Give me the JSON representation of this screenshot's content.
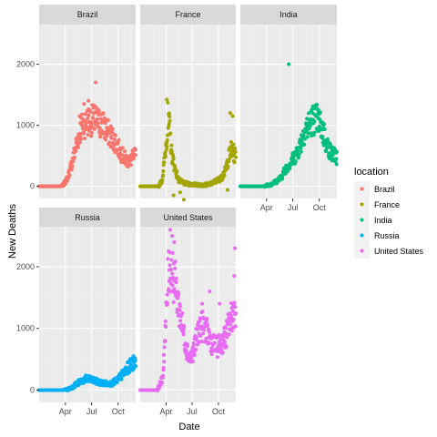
{
  "chart_data": {
    "type": "scatter",
    "facet_by": "location",
    "xlabel": "Date",
    "ylabel": "New Deaths",
    "x_domain": [
      "2020-01-01",
      "2020-12-01"
    ],
    "x_ticks": [
      {
        "date": "2020-04-01",
        "label": "Apr"
      },
      {
        "date": "2020-07-01",
        "label": "Jul"
      },
      {
        "date": "2020-10-01",
        "label": "Oct"
      }
    ],
    "ylim": [
      -200,
      2650
    ],
    "y_ticks": [
      0,
      1000,
      2000
    ],
    "grid": true,
    "legend": {
      "title": "location",
      "position": "right"
    },
    "series": [
      {
        "name": "Brazil",
        "color": "#F8766D",
        "anchors": [
          [
            "2020-01-01",
            0
          ],
          [
            "2020-03-15",
            0
          ],
          [
            "2020-03-25",
            20
          ],
          [
            "2020-04-10",
            150
          ],
          [
            "2020-04-25",
            400
          ],
          [
            "2020-05-10",
            700
          ],
          [
            "2020-05-25",
            950
          ],
          [
            "2020-06-10",
            1050
          ],
          [
            "2020-06-25",
            1080
          ],
          [
            "2020-07-10",
            1080
          ],
          [
            "2020-07-25",
            1050
          ],
          [
            "2020-08-10",
            1000
          ],
          [
            "2020-08-25",
            900
          ],
          [
            "2020-09-10",
            800
          ],
          [
            "2020-09-25",
            700
          ],
          [
            "2020-10-10",
            550
          ],
          [
            "2020-10-25",
            450
          ],
          [
            "2020-11-10",
            400
          ],
          [
            "2020-11-25",
            500
          ]
        ],
        "outliers": [
          [
            "2020-06-05",
            1350
          ],
          [
            "2020-06-20",
            1400
          ],
          [
            "2020-07-15",
            1700
          ],
          [
            "2020-05-20",
            1150
          ]
        ]
      },
      {
        "name": "France",
        "color": "#A3A500",
        "anchors": [
          [
            "2020-01-01",
            0
          ],
          [
            "2020-03-05",
            0
          ],
          [
            "2020-03-18",
            100
          ],
          [
            "2020-03-28",
            500
          ],
          [
            "2020-04-05",
            900
          ],
          [
            "2020-04-12",
            1000
          ],
          [
            "2020-04-20",
            550
          ],
          [
            "2020-05-01",
            300
          ],
          [
            "2020-05-15",
            100
          ],
          [
            "2020-06-01",
            50
          ],
          [
            "2020-07-01",
            30
          ],
          [
            "2020-08-01",
            20
          ],
          [
            "2020-09-01",
            30
          ],
          [
            "2020-09-20",
            80
          ],
          [
            "2020-10-10",
            130
          ],
          [
            "2020-10-25",
            250
          ],
          [
            "2020-11-05",
            450
          ],
          [
            "2020-11-15",
            600
          ],
          [
            "2020-11-30",
            500
          ]
        ],
        "outliers": [
          [
            "2020-04-03",
            1420
          ],
          [
            "2020-04-07",
            1370
          ],
          [
            "2020-06-02",
            -220
          ],
          [
            "2020-04-27",
            -150
          ],
          [
            "2020-11-12",
            1200
          ],
          [
            "2020-11-20",
            1150
          ],
          [
            "2020-05-20",
            -100
          ],
          [
            "2020-11-02",
            -60
          ]
        ]
      },
      {
        "name": "India",
        "color": "#00BF7D",
        "anchors": [
          [
            "2020-01-01",
            0
          ],
          [
            "2020-03-20",
            0
          ],
          [
            "2020-04-15",
            30
          ],
          [
            "2020-05-01",
            70
          ],
          [
            "2020-05-20",
            130
          ],
          [
            "2020-06-05",
            280
          ],
          [
            "2020-06-25",
            400
          ],
          [
            "2020-07-10",
            500
          ],
          [
            "2020-07-25",
            650
          ],
          [
            "2020-08-10",
            900
          ],
          [
            "2020-08-25",
            1000
          ],
          [
            "2020-09-10",
            1100
          ],
          [
            "2020-09-25",
            1100
          ],
          [
            "2020-10-10",
            950
          ],
          [
            "2020-10-25",
            700
          ],
          [
            "2020-11-10",
            550
          ],
          [
            "2020-11-30",
            480
          ]
        ],
        "outliers": [
          [
            "2020-06-17",
            2000
          ],
          [
            "2020-09-18",
            1280
          ],
          [
            "2020-09-28",
            1200
          ],
          [
            "2020-10-18",
            1020
          ]
        ]
      },
      {
        "name": "Russia",
        "color": "#00B0F6",
        "anchors": [
          [
            "2020-01-01",
            0
          ],
          [
            "2020-03-20",
            0
          ],
          [
            "2020-04-10",
            10
          ],
          [
            "2020-04-25",
            50
          ],
          [
            "2020-05-10",
            100
          ],
          [
            "2020-05-25",
            140
          ],
          [
            "2020-06-10",
            180
          ],
          [
            "2020-06-25",
            170
          ],
          [
            "2020-07-10",
            150
          ],
          [
            "2020-07-25",
            130
          ],
          [
            "2020-08-10",
            110
          ],
          [
            "2020-08-25",
            105
          ],
          [
            "2020-09-10",
            110
          ],
          [
            "2020-09-25",
            150
          ],
          [
            "2020-10-10",
            220
          ],
          [
            "2020-10-25",
            300
          ],
          [
            "2020-11-10",
            390
          ],
          [
            "2020-11-30",
            480
          ]
        ],
        "outliers": [
          [
            "2020-06-20",
            230
          ],
          [
            "2020-11-28",
            520
          ]
        ]
      },
      {
        "name": "United States",
        "color": "#E76BF3",
        "anchors": [
          [
            "2020-01-01",
            0
          ],
          [
            "2020-03-01",
            0
          ],
          [
            "2020-03-20",
            200
          ],
          [
            "2020-03-30",
            1000
          ],
          [
            "2020-04-10",
            2000
          ],
          [
            "2020-04-20",
            2000
          ],
          [
            "2020-05-01",
            1750
          ],
          [
            "2020-05-10",
            1500
          ],
          [
            "2020-05-25",
            1100
          ],
          [
            "2020-06-10",
            700
          ],
          [
            "2020-06-25",
            500
          ],
          [
            "2020-07-10",
            700
          ],
          [
            "2020-07-25",
            1000
          ],
          [
            "2020-08-10",
            1050
          ],
          [
            "2020-08-25",
            900
          ],
          [
            "2020-09-10",
            750
          ],
          [
            "2020-09-25",
            700
          ],
          [
            "2020-10-10",
            750
          ],
          [
            "2020-10-25",
            850
          ],
          [
            "2020-11-10",
            1100
          ],
          [
            "2020-11-30",
            1350
          ]
        ],
        "outliers": [
          [
            "2020-04-15",
            2600
          ],
          [
            "2020-04-22",
            2500
          ],
          [
            "2020-11-28",
            2300
          ],
          [
            "2020-11-25",
            1850
          ],
          [
            "2020-04-29",
            2400
          ],
          [
            "2020-08-05",
            1400
          ],
          [
            "2020-09-01",
            1600
          ],
          [
            "2020-10-05",
            1400
          ]
        ]
      }
    ]
  }
}
